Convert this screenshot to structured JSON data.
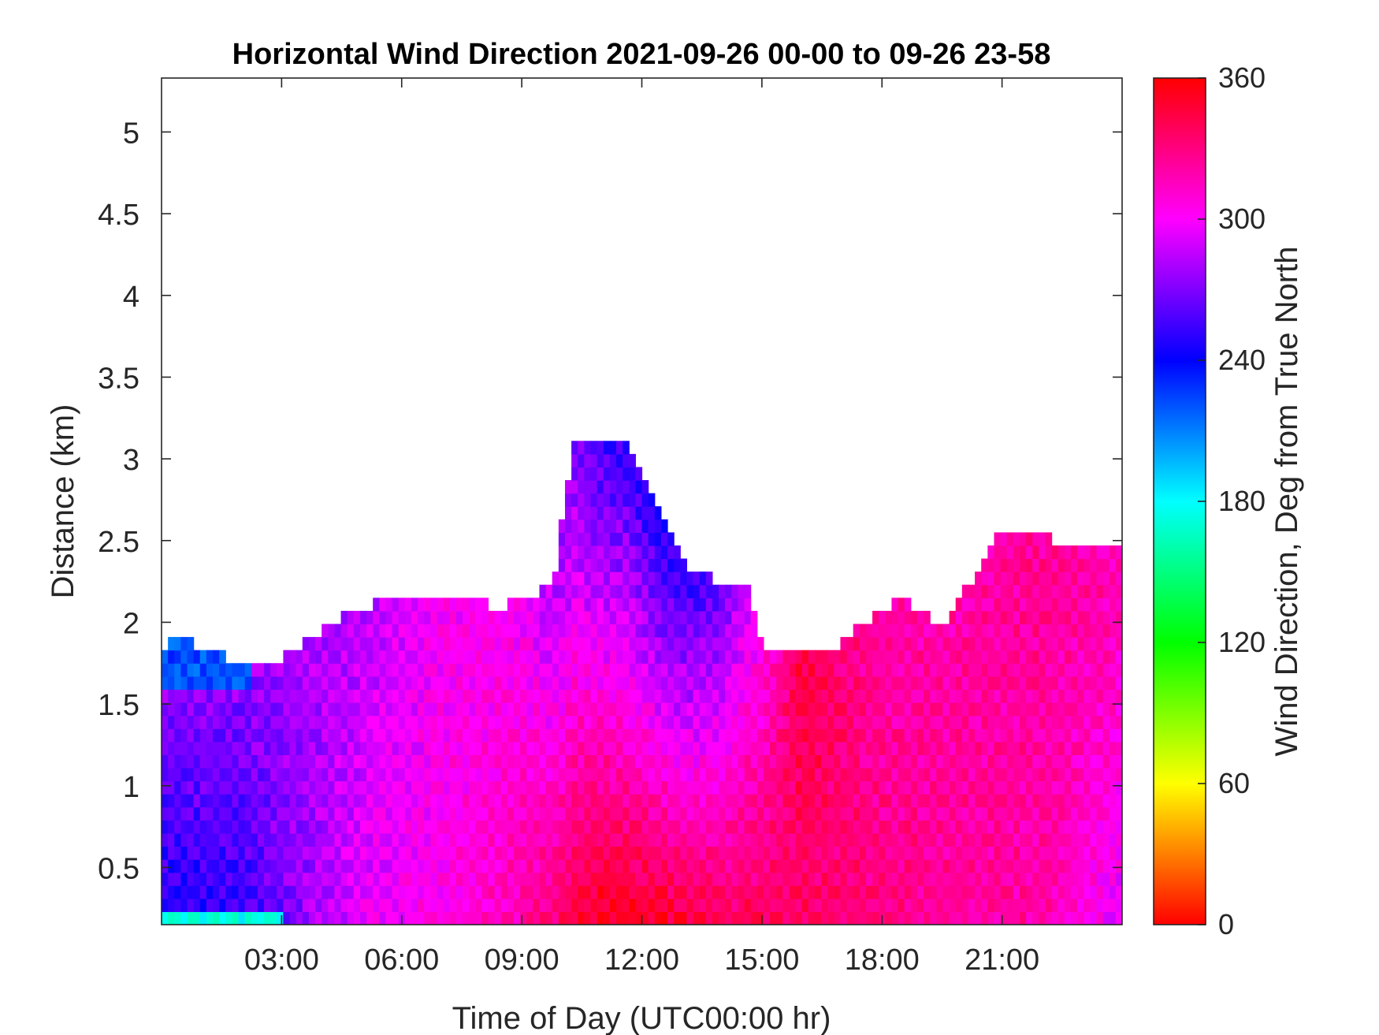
{
  "chart_data": {
    "type": "heatmap",
    "title": "Horizontal Wind Direction 2021-09-26 00-00 to 09-26 23-58",
    "xlabel": "Time of Day (UTC00:00 hr)",
    "ylabel": "Distance (km)",
    "colorbar_label": "Wind Direction, Deg from True North",
    "xlim": [
      0,
      24
    ],
    "ylim": [
      0.15,
      5.33
    ],
    "x_ticks": [
      {
        "value": 3,
        "label": "03:00"
      },
      {
        "value": 6,
        "label": "06:00"
      },
      {
        "value": 9,
        "label": "09:00"
      },
      {
        "value": 12,
        "label": "12:00"
      },
      {
        "value": 15,
        "label": "15:00"
      },
      {
        "value": 18,
        "label": "18:00"
      },
      {
        "value": 21,
        "label": "21:00"
      }
    ],
    "y_ticks": [
      {
        "value": 0.5,
        "label": "0.5"
      },
      {
        "value": 1,
        "label": "1"
      },
      {
        "value": 1.5,
        "label": "1.5"
      },
      {
        "value": 2,
        "label": "2"
      },
      {
        "value": 2.5,
        "label": "2.5"
      },
      {
        "value": 3,
        "label": "3"
      },
      {
        "value": 3.5,
        "label": "3.5"
      },
      {
        "value": 4,
        "label": "4"
      },
      {
        "value": 4.5,
        "label": "4.5"
      },
      {
        "value": 5,
        "label": "5"
      }
    ],
    "colorbar": {
      "range": [
        0,
        360
      ],
      "ticks": [
        {
          "value": 0,
          "label": "0"
        },
        {
          "value": 60,
          "label": "60"
        },
        {
          "value": 120,
          "label": "120"
        },
        {
          "value": 180,
          "label": "180"
        },
        {
          "value": 240,
          "label": "240"
        },
        {
          "value": 300,
          "label": "300"
        },
        {
          "value": 360,
          "label": "360"
        }
      ],
      "colormap": "hsv"
    },
    "data_top_km": [
      {
        "time": 0.0,
        "top": 1.8
      },
      {
        "time": 0.5,
        "top": 1.9
      },
      {
        "time": 1.0,
        "top": 1.8
      },
      {
        "time": 2.3,
        "top": 1.7
      },
      {
        "time": 3.0,
        "top": 1.75
      },
      {
        "time": 4.2,
        "top": 1.95
      },
      {
        "time": 5.0,
        "top": 2.05
      },
      {
        "time": 6.5,
        "top": 2.15
      },
      {
        "time": 8.5,
        "top": 2.05
      },
      {
        "time": 9.8,
        "top": 2.2
      },
      {
        "time": 10.3,
        "top": 3.1
      },
      {
        "time": 11.0,
        "top": 3.1
      },
      {
        "time": 11.6,
        "top": 3.1
      },
      {
        "time": 12.5,
        "top": 2.6
      },
      {
        "time": 13.2,
        "top": 2.25
      },
      {
        "time": 14.6,
        "top": 2.2
      },
      {
        "time": 15.0,
        "top": 1.8
      },
      {
        "time": 16.5,
        "top": 1.75
      },
      {
        "time": 17.5,
        "top": 1.95
      },
      {
        "time": 18.5,
        "top": 2.1
      },
      {
        "time": 19.5,
        "top": 1.95
      },
      {
        "time": 20.2,
        "top": 2.2
      },
      {
        "time": 21.0,
        "top": 2.55
      },
      {
        "time": 22.5,
        "top": 2.45
      },
      {
        "time": 24.0,
        "top": 2.45
      }
    ],
    "direction_field": [
      {
        "time": 0.5,
        "dir_low": 245,
        "dir_high": 280
      },
      {
        "time": 2.0,
        "dir_low": 250,
        "dir_high": 275
      },
      {
        "time": 3.5,
        "dir_low": 275,
        "dir_high": 280
      },
      {
        "time": 5.0,
        "dir_low": 295,
        "dir_high": 285
      },
      {
        "time": 7.0,
        "dir_low": 305,
        "dir_high": 300
      },
      {
        "time": 9.0,
        "dir_low": 320,
        "dir_high": 300
      },
      {
        "time": 11.0,
        "dir_low": 355,
        "dir_high": 255
      },
      {
        "time": 12.5,
        "dir_low": 350,
        "dir_high": 245
      },
      {
        "time": 14.0,
        "dir_low": 340,
        "dir_high": 265
      },
      {
        "time": 16.0,
        "dir_low": 335,
        "dir_high": 345
      },
      {
        "time": 18.0,
        "dir_low": 330,
        "dir_high": 320
      },
      {
        "time": 20.0,
        "dir_low": 325,
        "dir_high": 320
      },
      {
        "time": 22.0,
        "dir_low": 320,
        "dir_high": 325
      },
      {
        "time": 24.0,
        "dir_low": 295,
        "dir_high": 320
      }
    ],
    "grid": false
  }
}
